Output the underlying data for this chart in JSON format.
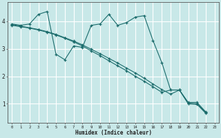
{
  "xlabel": "Humidex (Indice chaleur)",
  "bg_color": "#c8e8e8",
  "line_color": "#1a6b6b",
  "grid_color": "#b0d8d8",
  "xlim": [
    -0.5,
    23.5
  ],
  "ylim": [
    0.3,
    4.7
  ],
  "yticks": [
    1,
    2,
    3,
    4
  ],
  "xticks": [
    0,
    1,
    2,
    3,
    4,
    5,
    6,
    7,
    8,
    9,
    10,
    11,
    12,
    13,
    14,
    15,
    16,
    17,
    18,
    19,
    20,
    21,
    22,
    23
  ],
  "line1_x": [
    0,
    1,
    2,
    3,
    4,
    5,
    6,
    7,
    8,
    9,
    10,
    11,
    12,
    13,
    14,
    15,
    16,
    17,
    18,
    19,
    20,
    21,
    22
  ],
  "line1_y": [
    3.9,
    3.85,
    3.9,
    4.25,
    4.35,
    2.8,
    2.6,
    3.1,
    3.05,
    3.85,
    3.9,
    4.25,
    3.85,
    3.95,
    4.15,
    4.2,
    3.3,
    2.5,
    1.5,
    1.5,
    1.05,
    1.05,
    0.7
  ],
  "line2_x": [
    0,
    1,
    2,
    3,
    4,
    5,
    6,
    7,
    8,
    9,
    10,
    11,
    12,
    13,
    14,
    15,
    16,
    17,
    18,
    19,
    20,
    21,
    22
  ],
  "line2_y": [
    3.88,
    3.82,
    3.76,
    3.7,
    3.62,
    3.52,
    3.4,
    3.28,
    3.14,
    2.98,
    2.82,
    2.65,
    2.48,
    2.3,
    2.12,
    1.93,
    1.72,
    1.52,
    1.35,
    1.5,
    1.02,
    1.0,
    0.68
  ],
  "line3_x": [
    0,
    1,
    2,
    3,
    4,
    5,
    6,
    7,
    8,
    9,
    10,
    11,
    12,
    13,
    14,
    15,
    16,
    17,
    18,
    19,
    20,
    21,
    22
  ],
  "line3_y": [
    3.85,
    3.8,
    3.75,
    3.68,
    3.6,
    3.5,
    3.38,
    3.25,
    3.1,
    2.92,
    2.75,
    2.56,
    2.38,
    2.2,
    2.0,
    1.82,
    1.62,
    1.42,
    1.5,
    1.5,
    1.0,
    0.98,
    0.65
  ]
}
